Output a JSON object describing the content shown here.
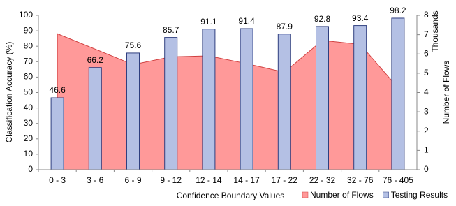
{
  "chart_data": {
    "type": "bar",
    "x_label": "Confidence Boundary Values",
    "y_label": "Classification Accuracy (%)",
    "y2_label": "Number of Flows",
    "y2_unit": "Thousands",
    "categories": [
      "0 - 3",
      "3 - 6",
      "6 - 9",
      "9 - 12",
      "12 - 14",
      "14 - 17",
      "17 - 22",
      "22 - 32",
      "32 - 76",
      "76 - 405"
    ],
    "series": [
      {
        "name": "Number of Flows",
        "type": "area",
        "axis": "y2",
        "color": "#ff9999",
        "edge": "#d04040",
        "values": [
          7.05,
          6.25,
          5.45,
          5.85,
          5.9,
          5.5,
          5.05,
          6.7,
          6.5,
          4.25
        ]
      },
      {
        "name": "Testing Results",
        "type": "bar",
        "color": "#b4c0e4",
        "edge": "#2f3f7f",
        "values": [
          46.6,
          66.2,
          75.6,
          85.7,
          91.1,
          91.4,
          87.9,
          92.8,
          93.4,
          98.2
        ]
      }
    ],
    "ylim": [
      0,
      100
    ],
    "yticks": [
      0,
      10,
      20,
      30,
      40,
      50,
      60,
      70,
      80,
      90,
      100
    ],
    "y2lim": [
      0,
      8
    ],
    "y2ticks": [
      0,
      1,
      2,
      3,
      4,
      5,
      6,
      7,
      8
    ],
    "legend": "bottom-right"
  }
}
